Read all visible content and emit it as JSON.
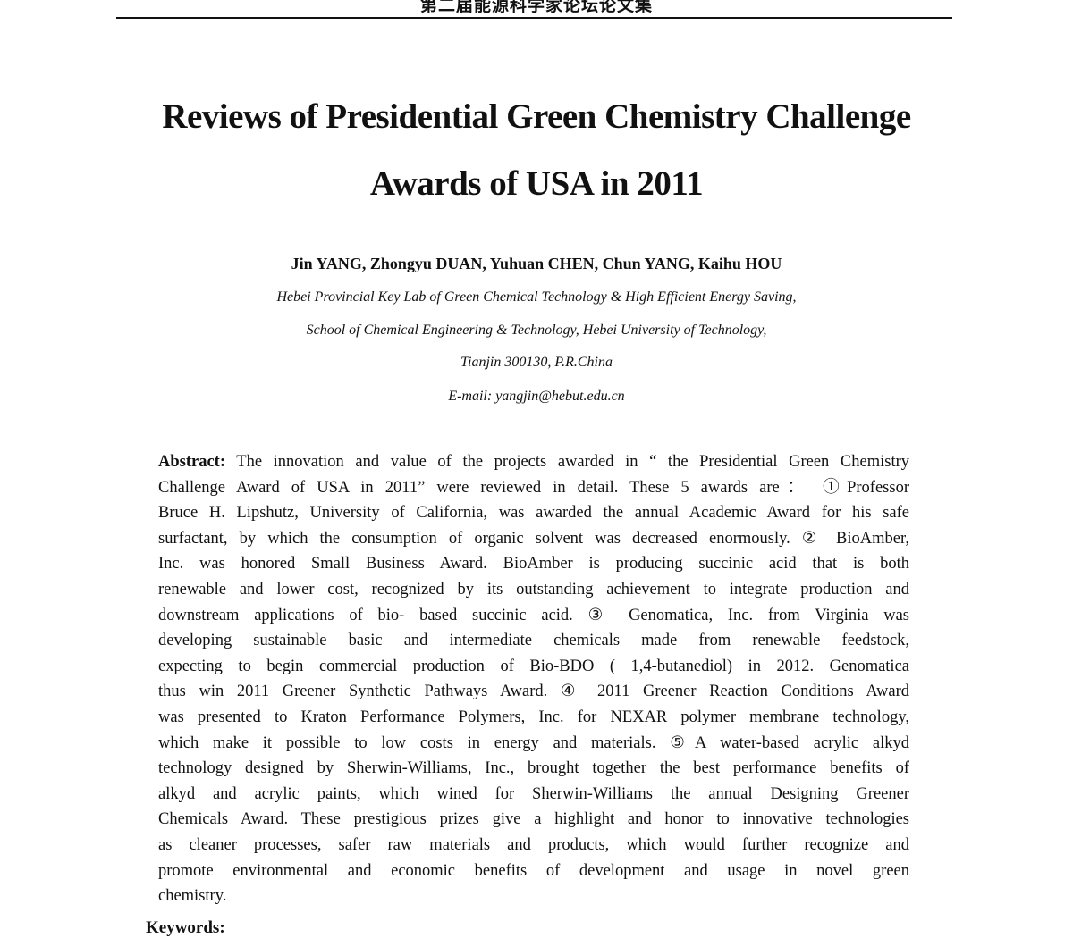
{
  "header": {
    "running_title": "第二届能源科学家论坛论文集"
  },
  "title": {
    "line1": "Reviews of Presidential Green Chemistry Challenge",
    "line2": "Awards of USA in 2011"
  },
  "authors": "Jin YANG, Zhongyu DUAN, Yuhuan CHEN, Chun YANG, Kaihu HOU",
  "affiliation": [
    "Hebei Provincial Key Lab of Green Chemical Technology & High Efficient Energy Saving,",
    "School of Chemical Engineering & Technology, Hebei University of Technology,",
    "Tianjin 300130, P.R.China",
    "E-mail: yangjin@hebut.edu.cn"
  ],
  "abstract": {
    "label": "Abstract:",
    "lines": [
      "The innovation and value of the projects awarded in “ the Presidential Green Chemistry",
      "Challenge Award of USA in 2011” were reviewed in detail. These 5 awards are： ①Professor",
      "Bruce H. Lipshutz, University of California, was awarded the annual Academic Award for his safe",
      "surfactant, by which the consumption of organic solvent was decreased enormously. ② BioAmber,",
      "Inc. was honored Small Business Award. BioAmber is producing succinic acid that is both",
      "renewable and lower cost, recognized by its outstanding achievement to integrate production and",
      "downstream applications of bio- based succinic acid. ③ Genomatica, Inc. from Virginia was",
      "developing sustainable basic and intermediate chemicals made from renewable feedstock,",
      "expecting to begin commercial production of Bio-BDO ( 1,4-butanediol) in 2012. Genomatica",
      "thus win 2011 Greener Synthetic Pathways Award. ④ 2011 Greener Reaction Conditions Award",
      "was presented to Kraton Performance Polymers, Inc. for NEXAR polymer membrane technology,",
      "which make it possible to low costs in energy and materials. ⑤A water-based acrylic alkyd",
      "technology designed by Sherwin-Williams, Inc., brought together the best performance benefits of",
      "alkyd and acrylic paints, which wined for Sherwin-Williams the annual Designing Greener",
      "Chemicals Award. These prestigious prizes give a highlight and honor to innovative technologies",
      "as cleaner processes, safer raw materials and products, which would further recognize and",
      "promote environmental and economic benefits of development and usage in novel green",
      "chemistry."
    ]
  },
  "keywords_label": "Keywords:"
}
